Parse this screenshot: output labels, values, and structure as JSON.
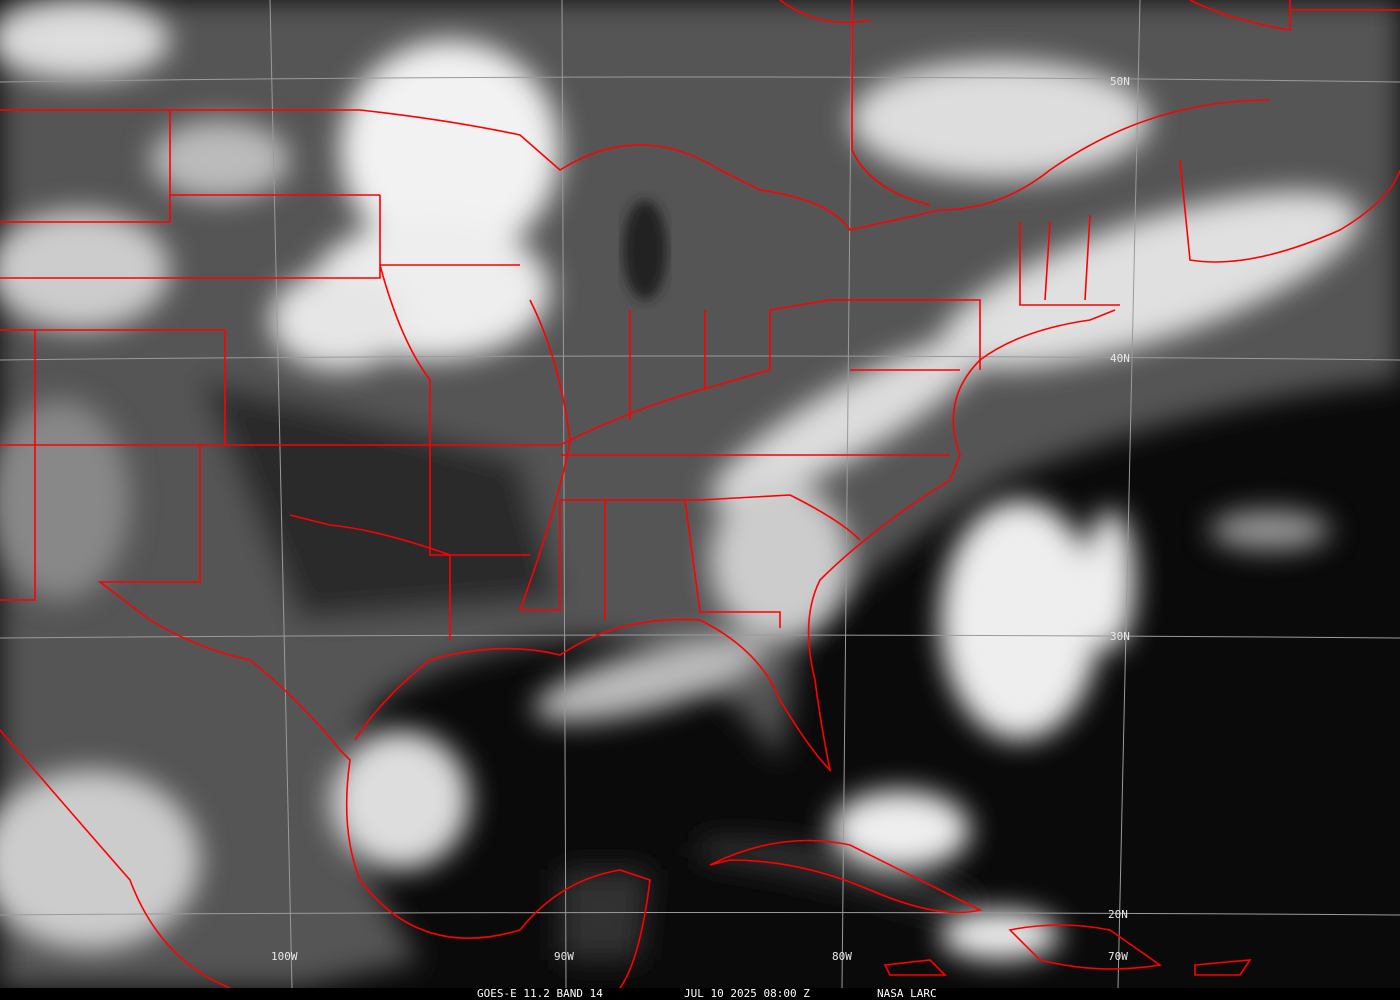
{
  "caption": {
    "product": "GOES-E 11.2 BAND 14",
    "datetime": "JUL 10 2025 08:00 Z",
    "credit": "NASA LARC"
  },
  "grid_labels": {
    "lat_50": "50N",
    "lat_40": "40N",
    "lat_30": "30N",
    "lat_20": "20N",
    "lon_100": "100W",
    "lon_90": "90W",
    "lon_80": "80W",
    "lon_70": "70W"
  },
  "colors": {
    "boundaries": "#ff0000",
    "grid": "#9a9a9a",
    "cold_cloud": "#ffffff",
    "ocean": "#0a0a0a",
    "land": "#4a4a4a"
  }
}
